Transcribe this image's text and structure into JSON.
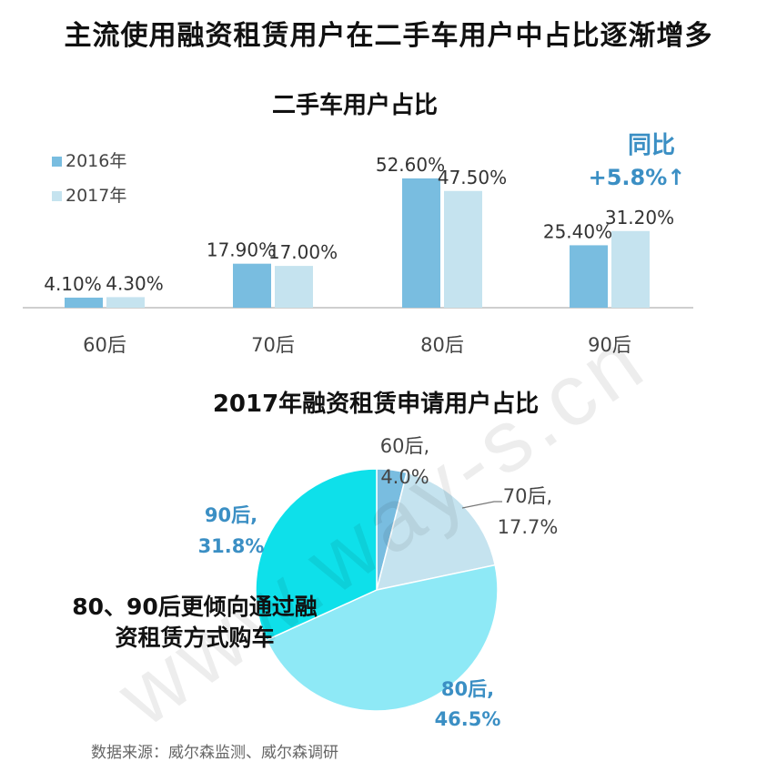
{
  "page_title": "主流使用融资租赁用户在二手车用户中占比逐渐增多",
  "watermark": "www.way-s.cn",
  "source": "数据来源：威尔森监测、威尔森调研",
  "colors": {
    "s2016": "#79bde0",
    "s2017": "#c5e3ef",
    "pie_60": "#79bde0",
    "pie_70": "#c5e3ef",
    "pie_80": "#8ee9f6",
    "pie_90": "#0ee0ea",
    "label_blue": "#3b8fc4",
    "axis": "#bfbfbf"
  },
  "chart_data": [
    {
      "type": "bar",
      "title": "二手车用户占比",
      "categories": [
        "60后",
        "70后",
        "80后",
        "90后"
      ],
      "series": [
        {
          "name": "2016年",
          "values": [
            4.1,
            17.9,
            52.6,
            25.4
          ],
          "labels": [
            "4.10%",
            "17.90%",
            "52.60%",
            "25.40%"
          ]
        },
        {
          "name": "2017年",
          "values": [
            4.3,
            17.0,
            47.5,
            31.2
          ],
          "labels": [
            "4.30%",
            "17.00%",
            "47.50%",
            "31.20%"
          ]
        }
      ],
      "ylim": [
        0,
        60
      ],
      "legend": "top-left",
      "annotation": {
        "line1": "同比",
        "line2": "+5.8%↑"
      }
    },
    {
      "type": "pie",
      "title": "2017年融资租赁申请用户占比",
      "slices": [
        {
          "name": "60后",
          "value": 4.0,
          "label_line1": "60后,",
          "label_line2": "4.0%"
        },
        {
          "name": "70后",
          "value": 17.7,
          "label_line1": "70后,",
          "label_line2": "17.7%"
        },
        {
          "name": "80后",
          "value": 46.5,
          "label_line1": "80后,",
          "label_line2": "46.5%"
        },
        {
          "name": "90后",
          "value": 31.8,
          "label_line1": "90后,",
          "label_line2": "31.8%"
        }
      ],
      "annotation": {
        "line1": "80、90后更倾向通过融",
        "line2": "资租赁方式购车"
      }
    }
  ]
}
